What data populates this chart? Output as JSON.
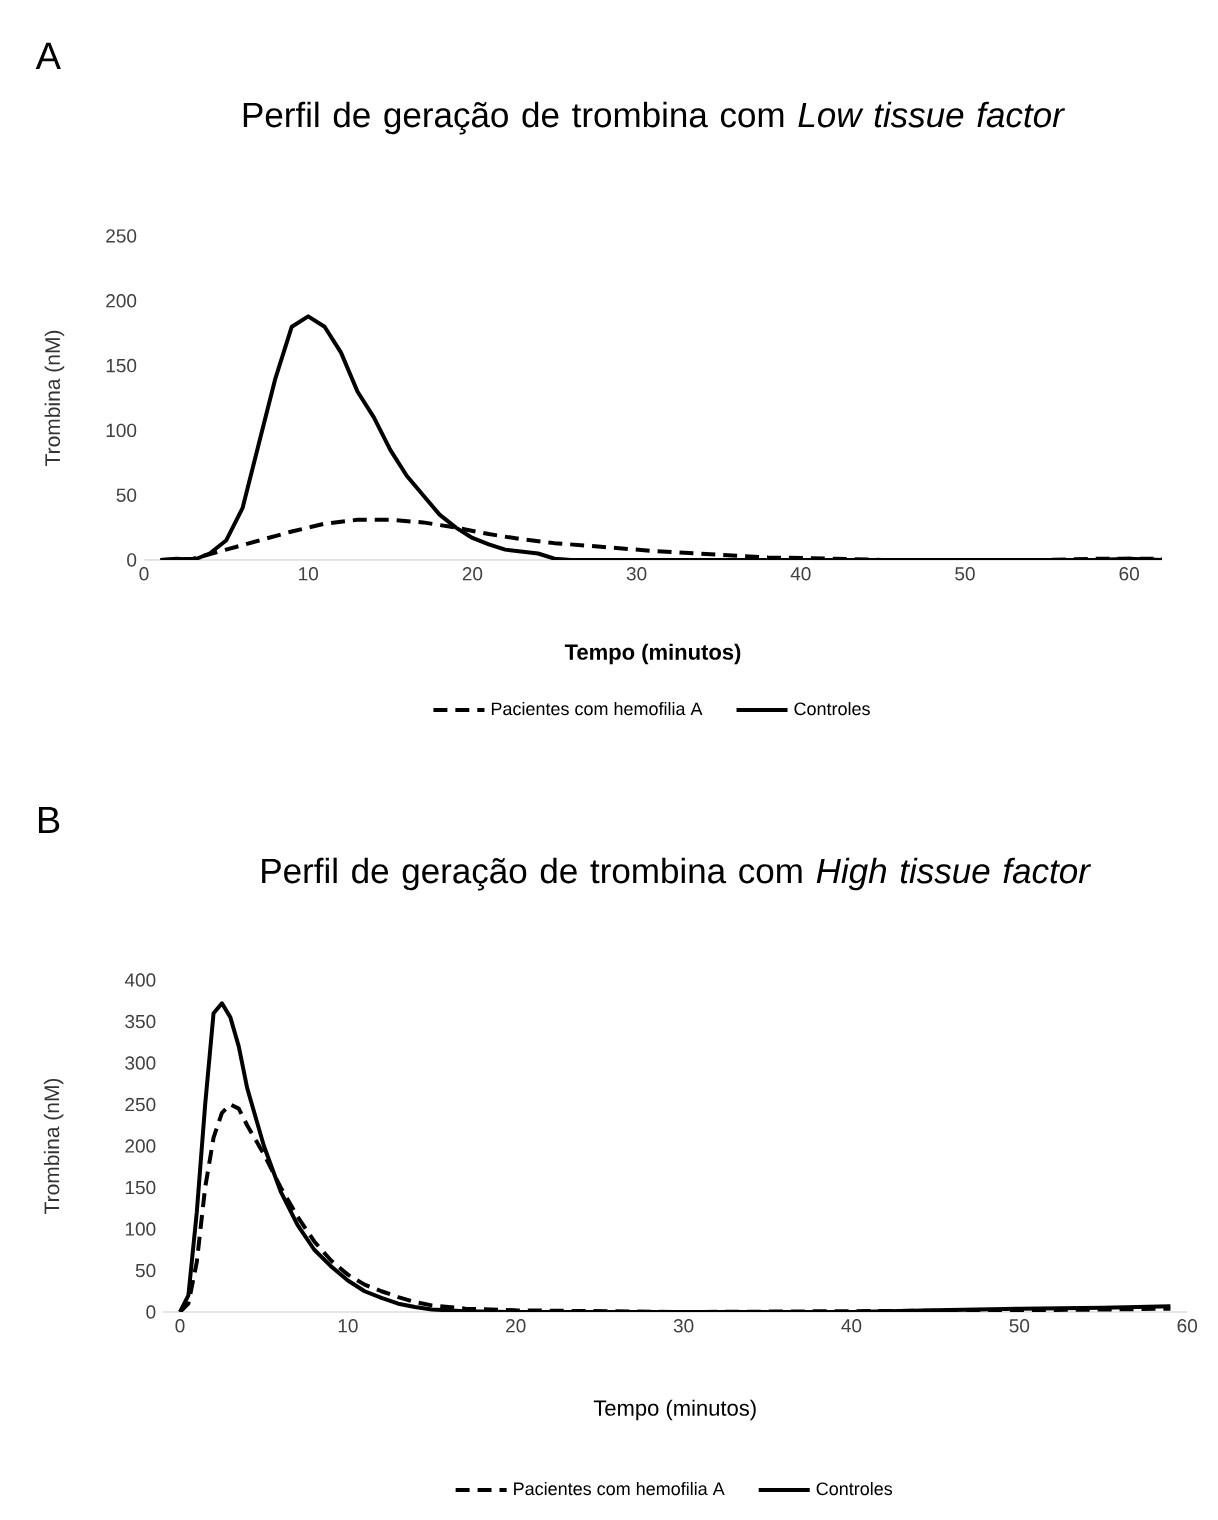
{
  "chart_data": [
    {
      "type": "line",
      "title": "Perfil de geração de trombina com *Low tissue factor*",
      "xlabel": "Tempo (minutos)",
      "ylabel": "Trombina (nM)",
      "annotations": [
        "A"
      ],
      "legend": "bottom",
      "grid": false,
      "xlim": [
        0,
        62
      ],
      "xticks": [
        0,
        10,
        20,
        30,
        40,
        50,
        60
      ],
      "ylim": [
        0,
        250
      ],
      "yticks": [
        0,
        50,
        100,
        150,
        200,
        250
      ],
      "series": [
        {
          "name": "Pacientes com hemofilia A",
          "color": "#000000",
          "line_style": "dashed",
          "x": [
            1,
            3,
            5,
            7,
            9,
            11,
            13,
            15,
            17,
            19,
            21,
            23,
            25,
            28,
            31,
            35,
            38,
            42,
            45,
            50,
            55,
            58,
            62
          ],
          "values": [
            0,
            1,
            8,
            15,
            22,
            28,
            31,
            31,
            29,
            25,
            20,
            16,
            13,
            10,
            7,
            4,
            2,
            1,
            0,
            0,
            0,
            1,
            1
          ]
        },
        {
          "name": "Controles",
          "color": "#000000",
          "line_style": "solid",
          "x": [
            1,
            2,
            3,
            4,
            5,
            6,
            7,
            8,
            9,
            10,
            11,
            12,
            13,
            14,
            15,
            16,
            17,
            18,
            19,
            20,
            21,
            22,
            24,
            25,
            26,
            30,
            40,
            50,
            58,
            60,
            62
          ],
          "values": [
            0,
            1,
            0,
            5,
            15,
            40,
            90,
            140,
            180,
            188,
            180,
            160,
            130,
            110,
            85,
            65,
            50,
            35,
            25,
            17,
            12,
            8,
            5,
            1,
            0,
            0,
            0,
            0,
            0,
            1,
            0
          ]
        }
      ]
    },
    {
      "type": "line",
      "title": "Perfil de geração de trombina com *High tissue factor*",
      "xlabel": "Tempo (minutos)",
      "ylabel": "Trombina (nM)",
      "annotations": [
        "B"
      ],
      "legend": "bottom",
      "grid": false,
      "xlim": [
        -1,
        60
      ],
      "xticks": [
        0,
        10,
        20,
        30,
        40,
        50,
        60
      ],
      "ylim": [
        0,
        400
      ],
      "yticks": [
        0,
        50,
        100,
        150,
        200,
        250,
        300,
        350,
        400
      ],
      "series": [
        {
          "name": "Pacientes com hemofilia A",
          "color": "#000000",
          "line_style": "dashed",
          "x": [
            0,
            0.5,
            1,
            1.5,
            2,
            2.5,
            3,
            3.5,
            4,
            5,
            6,
            7,
            8,
            9,
            10,
            11,
            12,
            13,
            14,
            15,
            17,
            20,
            30,
            40,
            50,
            55,
            59
          ],
          "values": [
            0,
            10,
            60,
            150,
            210,
            240,
            250,
            245,
            225,
            190,
            150,
            115,
            85,
            62,
            45,
            33,
            25,
            18,
            12,
            8,
            4,
            2,
            0,
            1,
            2,
            3,
            4
          ]
        },
        {
          "name": "Controles",
          "color": "#000000",
          "line_style": "solid",
          "x": [
            0,
            0.5,
            1,
            1.5,
            2,
            2.5,
            3,
            3.5,
            4,
            5,
            6,
            7,
            8,
            9,
            10,
            11,
            12,
            13,
            14,
            15,
            17,
            20,
            30,
            40,
            45,
            50,
            55,
            59
          ],
          "values": [
            0,
            20,
            120,
            250,
            360,
            372,
            355,
            320,
            270,
            200,
            145,
            105,
            75,
            55,
            38,
            25,
            17,
            10,
            6,
            3,
            1,
            0,
            0,
            0,
            2,
            4,
            5,
            7
          ]
        }
      ]
    }
  ]
}
